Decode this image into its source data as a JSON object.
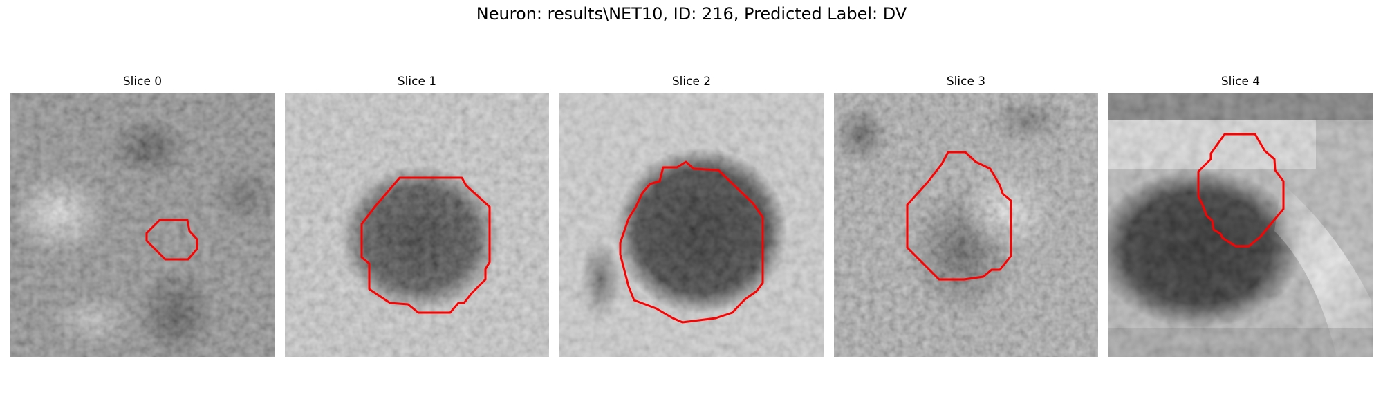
{
  "figure": {
    "title": "Neuron: results\\NET10, ID: 216, Predicted Label: DV"
  },
  "colors": {
    "contour": "#ff0000",
    "background": "#ffffff"
  },
  "panels": [
    {
      "title": "Slice 0"
    },
    {
      "title": "Slice 1"
    },
    {
      "title": "Slice 2"
    },
    {
      "title": "Slice 3"
    },
    {
      "title": "Slice 4"
    }
  ]
}
